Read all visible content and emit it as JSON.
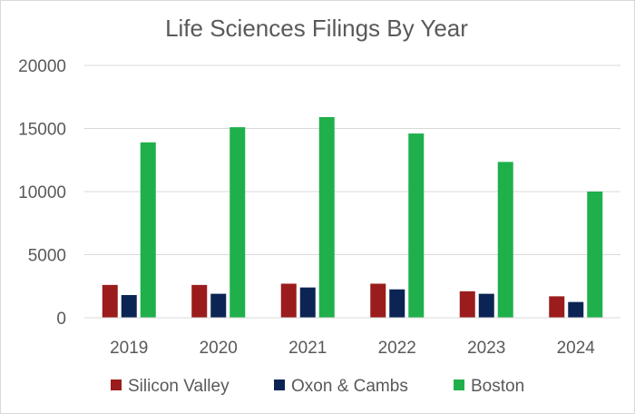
{
  "chart_data": {
    "type": "bar",
    "title": "Life Sciences Filings By Year",
    "categories": [
      "2019",
      "2020",
      "2021",
      "2022",
      "2023",
      "2024"
    ],
    "series": [
      {
        "name": "Silicon Valley",
        "color": "#9b1c1c",
        "values": [
          2600,
          2600,
          2700,
          2700,
          2100,
          1700
        ]
      },
      {
        "name": "Oxon & Cambs",
        "color": "#0b2454",
        "values": [
          1800,
          1900,
          2400,
          2250,
          1900,
          1250
        ]
      },
      {
        "name": "Boston",
        "color": "#1fb04b",
        "values": [
          13900,
          15100,
          15900,
          14600,
          12350,
          10000
        ]
      }
    ],
    "ylim": [
      0,
      20000
    ],
    "yticks": [
      "20000",
      "15000",
      "10000",
      "5000",
      "0"
    ],
    "grid": true,
    "legend_position": "bottom"
  }
}
